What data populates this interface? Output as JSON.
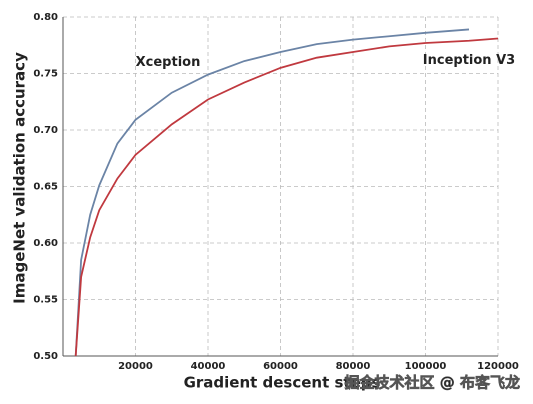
{
  "chart_data": {
    "type": "line",
    "xlabel": "Gradient descent steps",
    "ylabel": "ImageNet validation accuracy",
    "x": [
      3500,
      5000,
      7500,
      10000,
      15000,
      20000,
      30000,
      40000,
      50000,
      60000,
      70000,
      80000,
      90000,
      100000,
      112000,
      120000
    ],
    "series": [
      {
        "name": "Xception",
        "color": "#6b84a6",
        "values": [
          0.5,
          0.585,
          0.625,
          0.651,
          0.688,
          0.709,
          0.733,
          0.749,
          0.761,
          0.769,
          0.776,
          0.78,
          0.783,
          0.786,
          0.789,
          null
        ]
      },
      {
        "name": "Inception V3",
        "color": "#c0393f",
        "values": [
          0.5,
          0.57,
          0.605,
          0.629,
          0.657,
          0.678,
          0.705,
          0.727,
          0.742,
          0.755,
          0.764,
          0.769,
          0.774,
          0.777,
          0.779,
          0.781
        ]
      }
    ],
    "xlim": [
      0,
      120000
    ],
    "xticks": [
      20000,
      40000,
      60000,
      80000,
      100000,
      120000
    ],
    "ylim": [
      0.5,
      0.8
    ],
    "yticks": [
      {
        "value": 0.5,
        "label": "0.50"
      },
      {
        "value": 0.55,
        "label": "0.55"
      },
      {
        "value": 0.6,
        "label": "0.60"
      },
      {
        "value": 0.65,
        "label": "0.65"
      },
      {
        "value": 0.7,
        "label": "0.70"
      },
      {
        "value": 0.75,
        "label": "0.75"
      },
      {
        "value": 0.8,
        "label": "0.80"
      }
    ],
    "grid": true,
    "watermark": "掘金技术社区 @ 布客飞龙"
  }
}
